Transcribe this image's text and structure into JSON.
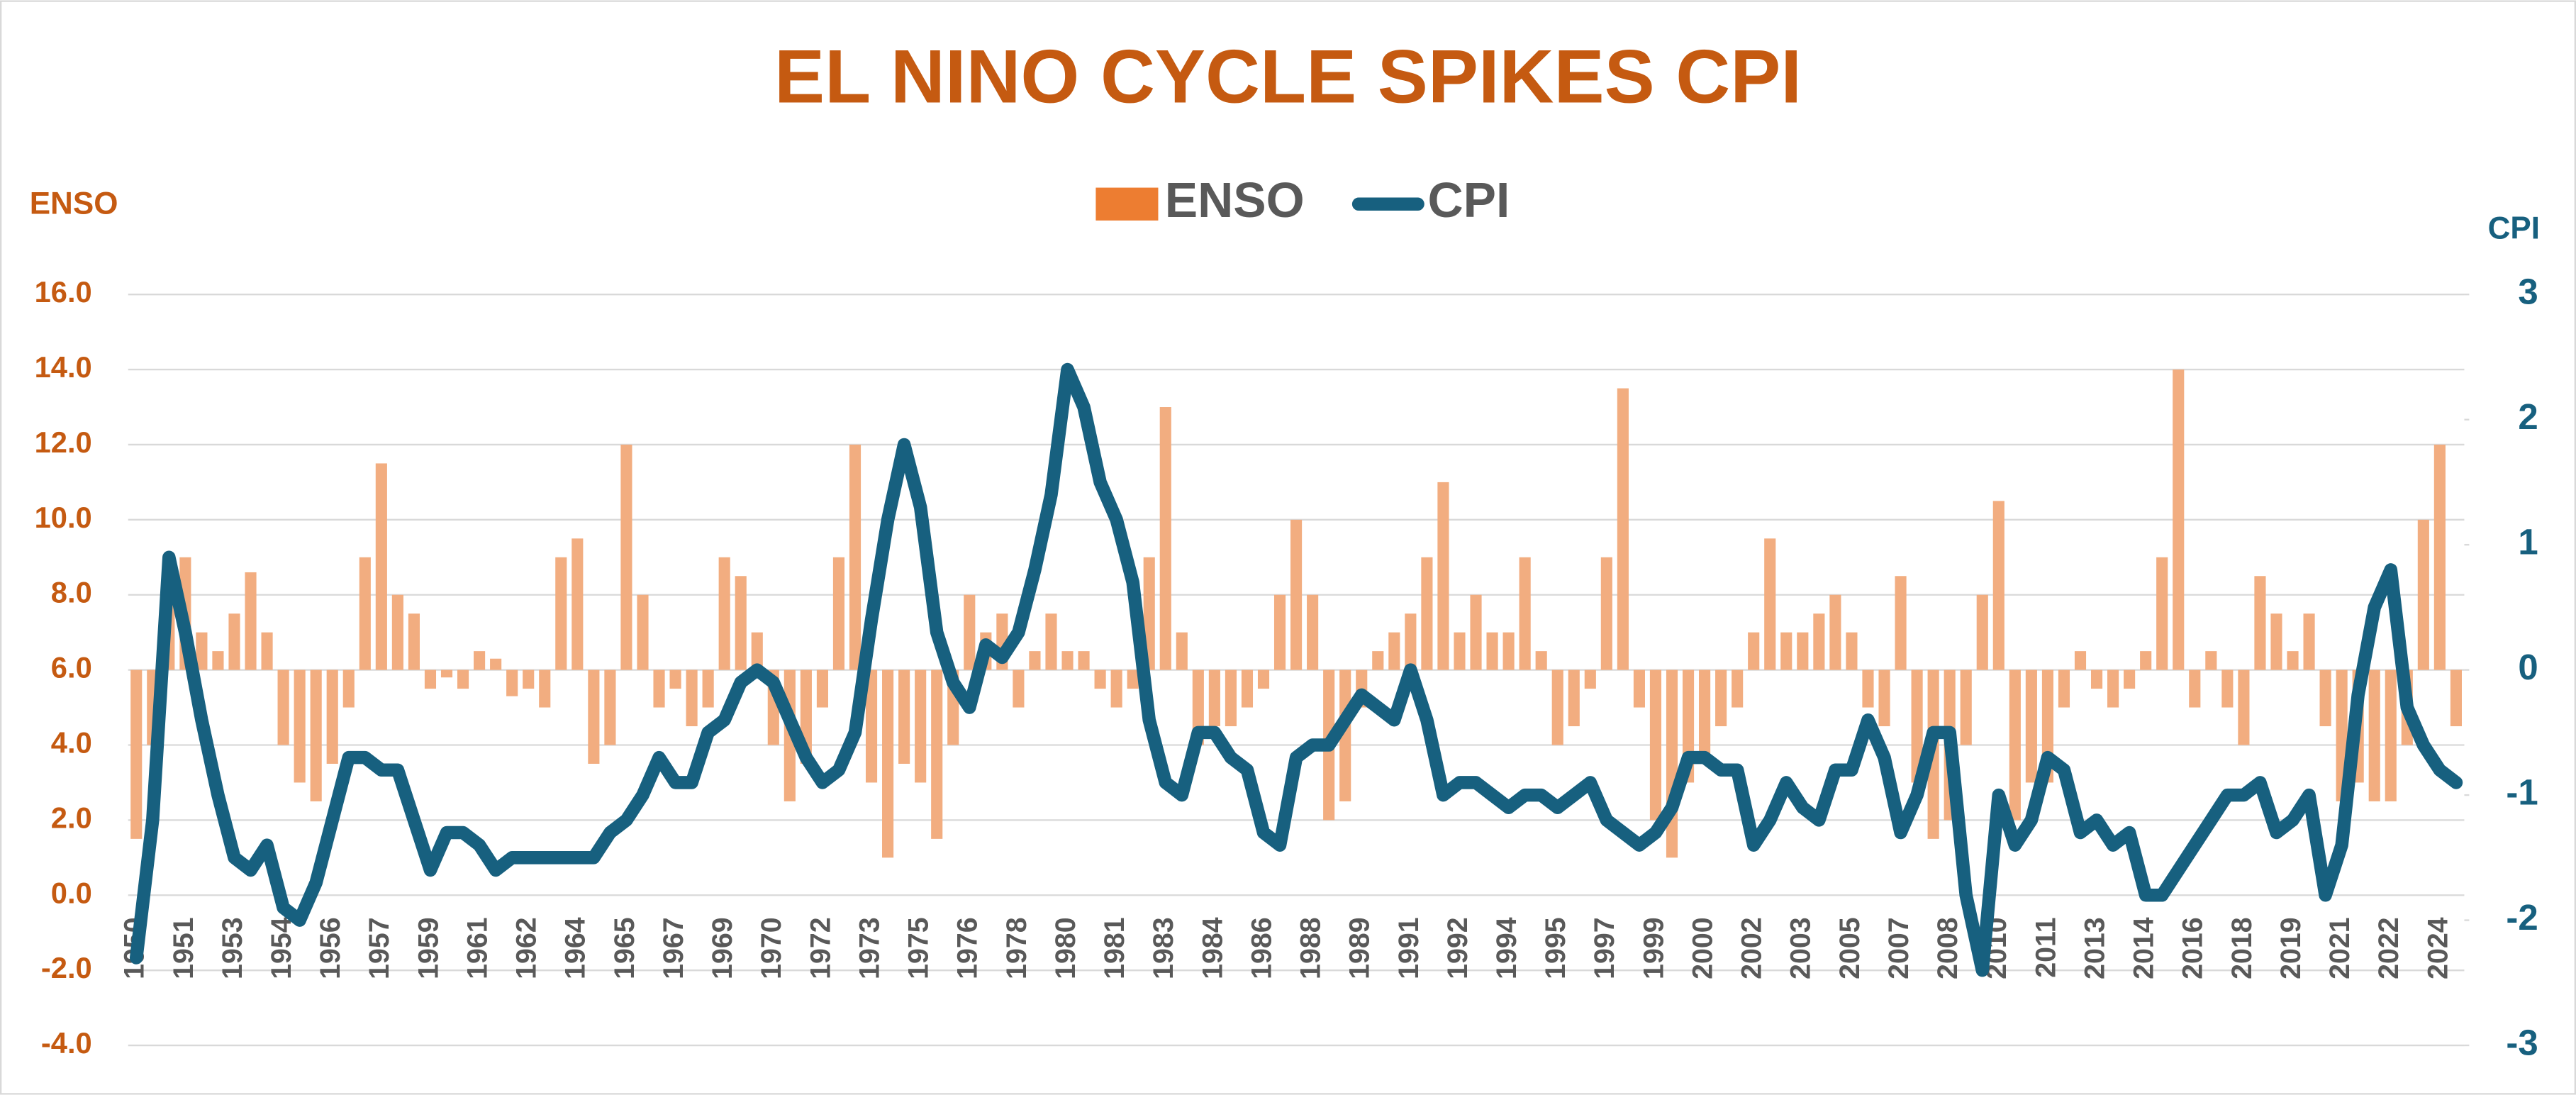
{
  "chart_data": {
    "type": "bar_line",
    "title": "EL NINO CYCLE SPIKES CPI",
    "y_axis_label": "ENSO",
    "y2_axis_label": "CPI",
    "legend": "top",
    "grid": true,
    "bar_baseline": 6,
    "categories": [
      "1950",
      null,
      null,
      "1951",
      null,
      null,
      "1953",
      null,
      null,
      "1954",
      null,
      null,
      "1956",
      null,
      null,
      "1957",
      null,
      null,
      "1959",
      null,
      null,
      "1961",
      null,
      null,
      "1962",
      null,
      null,
      "1964",
      null,
      null,
      "1965",
      null,
      null,
      "1967",
      null,
      null,
      "1969",
      null,
      null,
      "1970",
      null,
      null,
      "1972",
      null,
      null,
      "1973",
      null,
      null,
      "1975",
      null,
      null,
      "1976",
      null,
      null,
      "1978",
      null,
      null,
      "1980",
      null,
      null,
      "1981",
      null,
      null,
      "1983",
      null,
      null,
      "1984",
      null,
      null,
      "1986",
      null,
      null,
      "1988",
      null,
      null,
      "1989",
      null,
      null,
      "1991",
      null,
      null,
      "1992",
      null,
      null,
      "1994",
      null,
      null,
      "1995",
      null,
      null,
      "1997",
      null,
      null,
      "1999",
      null,
      null,
      "2000",
      null,
      null,
      "2002",
      null,
      null,
      "2003",
      null,
      null,
      "2005",
      null,
      null,
      "2007",
      null,
      null,
      "2008",
      null,
      null,
      "2010",
      null,
      null,
      "2011",
      null,
      null,
      "2013",
      null,
      null,
      "2014",
      null,
      null,
      "2016",
      null,
      null,
      "2018",
      null,
      null,
      "2019",
      null,
      null,
      "2021",
      null,
      null,
      "2022",
      null,
      null,
      "2024",
      null
    ],
    "series": [
      {
        "name": "ENSO",
        "type": "bar",
        "color": "#ed7d31",
        "bar_color": "#f2ad80",
        "values": [
          1.5,
          4,
          8,
          9,
          7,
          6.5,
          7.5,
          8.6,
          7,
          4,
          3,
          2.5,
          3.5,
          5,
          9,
          11.5,
          8,
          7.5,
          5.5,
          5.8,
          5.5,
          6.5,
          6.3,
          5.3,
          5.5,
          5,
          9,
          9.5,
          3.5,
          4,
          12,
          8,
          5,
          5.5,
          4.5,
          5,
          9,
          8.5,
          7,
          4,
          2.5,
          3.5,
          5,
          9,
          12,
          3,
          1,
          3.5,
          3,
          1.5,
          4,
          8,
          7,
          7.5,
          5,
          6.5,
          7.5,
          6.5,
          6.5,
          5.5,
          5,
          5.5,
          9,
          13,
          7,
          4,
          4.5,
          4.5,
          5,
          5.5,
          8,
          10,
          8,
          2,
          2.5,
          5,
          6.5,
          7,
          7.5,
          9,
          11,
          7,
          8,
          7,
          7,
          9,
          6.5,
          4,
          4.5,
          5.5,
          9,
          13.5,
          5,
          2,
          1,
          3,
          3.5,
          4.5,
          5,
          7,
          9.5,
          7,
          7,
          7.5,
          8,
          7,
          5,
          4.5,
          8.5,
          3,
          1.5,
          2,
          4,
          8,
          10.5,
          2,
          3,
          3,
          5,
          6.5,
          5.5,
          5,
          5.5,
          6.5,
          9,
          14,
          5,
          6.5,
          5,
          4,
          8.5,
          7.5,
          6.5,
          7.5,
          4.5,
          2.5,
          3,
          2.5,
          2.5,
          4,
          10,
          12,
          4.5
        ]
      },
      {
        "name": "CPI",
        "type": "line",
        "axis": "y2",
        "color": "#17607f",
        "values": [
          -2.3,
          -1.2,
          0.9,
          0.3,
          -0.4,
          -1,
          -1.5,
          -1.6,
          -1.4,
          -1.9,
          -2,
          -1.7,
          -1.2,
          -0.7,
          -0.7,
          -0.8,
          -0.8,
          -1.2,
          -1.6,
          -1.3,
          -1.3,
          -1.4,
          -1.6,
          -1.5,
          -1.5,
          -1.5,
          -1.5,
          -1.5,
          -1.5,
          -1.3,
          -1.2,
          -1,
          -0.7,
          -0.9,
          -0.9,
          -0.5,
          -0.4,
          -0.1,
          0,
          -0.1,
          -0.4,
          -0.7,
          -0.9,
          -0.8,
          -0.5,
          0.4,
          1.2,
          1.8,
          1.3,
          0.3,
          -0.1,
          -0.3,
          0.2,
          0.1,
          0.3,
          0.8,
          1.4,
          2.4,
          2.1,
          1.5,
          1.2,
          0.7,
          -0.4,
          -0.9,
          -1,
          -0.5,
          -0.5,
          -0.7,
          -0.8,
          -1.3,
          -1.4,
          -0.7,
          -0.6,
          -0.6,
          -0.4,
          -0.2,
          -0.3,
          -0.4,
          0,
          -0.4,
          -1,
          -0.9,
          -0.9,
          -1,
          -1.1,
          -1,
          -1,
          -1.1,
          -1,
          -0.9,
          -1.2,
          -1.3,
          -1.4,
          -1.3,
          -1.1,
          -0.7,
          -0.7,
          -0.8,
          -0.8,
          -1.4,
          -1.2,
          -0.9,
          -1.1,
          -1.2,
          -0.8,
          -0.8,
          -0.4,
          -0.7,
          -1.3,
          -1,
          -0.5,
          -0.5,
          -1.8,
          -2.4,
          -1,
          -1.4,
          -1.2,
          -0.7,
          -0.8,
          -1.3,
          -1.2,
          -1.4,
          -1.3,
          -1.8,
          -1.8,
          -1.6,
          -1.4,
          -1.2,
          -1,
          -1,
          -0.9,
          -1.3,
          -1.2,
          -1,
          -1.8,
          -1.4,
          -0.2,
          0.5,
          0.8,
          -0.3,
          -0.6,
          -0.8,
          -0.9
        ]
      }
    ],
    "ylim": [
      -4,
      16
    ],
    "yticks": [
      {
        "value": -4,
        "label": "-4.0"
      },
      {
        "value": -2,
        "label": "-2.0"
      },
      {
        "value": 0,
        "label": "0.0"
      },
      {
        "value": 2,
        "label": "2.0"
      },
      {
        "value": 4,
        "label": "4.0"
      },
      {
        "value": 6,
        "label": "6.0"
      },
      {
        "value": 8,
        "label": "8.0"
      },
      {
        "value": 10,
        "label": "10.0"
      },
      {
        "value": 12,
        "label": "12.0"
      },
      {
        "value": 14,
        "label": "14.0"
      },
      {
        "value": 16,
        "label": "16.0"
      }
    ],
    "y2lim": [
      -3,
      3
    ],
    "y2ticks": [
      -3,
      -2,
      -1,
      0,
      1,
      2,
      3
    ]
  }
}
